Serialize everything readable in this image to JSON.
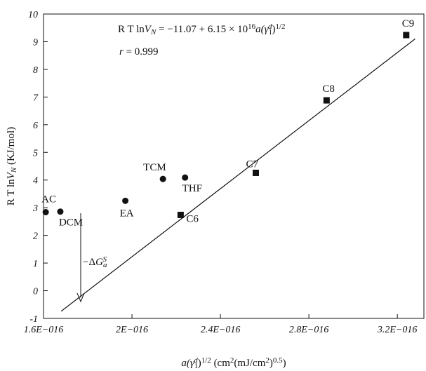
{
  "chart_data": {
    "type": "scatter",
    "x_label": [
      "a(γ",
      "1",
      "d",
      ")",
      "1/2",
      " (cm",
      "2",
      "(mJ/cm",
      "2",
      ")",
      "0.5",
      ")"
    ],
    "y_label": [
      "R T ln",
      "V",
      "N",
      " (KJ/mol)"
    ],
    "annotations": {
      "equation": [
        "R T ln",
        "V",
        "N",
        " = −11.07 + 6.15 × 10",
        "16",
        "a",
        "(γ",
        "1",
        "d",
        ")",
        "1/2"
      ],
      "r": [
        "r",
        " = 0.999"
      ],
      "delta_g": [
        "−Δ",
        "G",
        "a",
        "S"
      ]
    },
    "xlim": [
      1.6e-16,
      3.32e-16
    ],
    "xticks": [
      {
        "value": 1.6e-16,
        "label": "1.6E−016"
      },
      {
        "value": 2e-16,
        "label": "2E−016"
      },
      {
        "value": 2.4e-16,
        "label": "2.4E−016"
      },
      {
        "value": 2.8e-16,
        "label": "2.8E−016"
      },
      {
        "value": 3.2e-16,
        "label": "3.2E−016"
      }
    ],
    "ylim": [
      -1,
      10
    ],
    "yticks": [
      -1,
      0,
      1,
      2,
      3,
      4,
      5,
      6,
      7,
      8,
      9,
      10
    ],
    "series": [
      {
        "marker": "circle",
        "color": "#111111",
        "labels": [
          "AC",
          "DCM",
          "EA",
          "TCM",
          "THF"
        ],
        "x": [
          1.61e-16,
          1.676e-16,
          1.97e-16,
          2.14e-16,
          2.24e-16
        ],
        "values": [
          2.84,
          2.86,
          3.25,
          4.04,
          4.09
        ]
      },
      {
        "marker": "square",
        "color": "#111111",
        "labels": [
          "C6",
          "C7",
          "C8",
          "C9"
        ],
        "x": [
          2.22e-16,
          2.56e-16,
          2.88e-16,
          3.24e-16
        ],
        "values": [
          2.74,
          4.26,
          6.88,
          9.24
        ]
      }
    ],
    "fit_line": {
      "x": [
        1.68e-16,
        3.28e-16
      ],
      "values": [
        -0.74,
        9.1
      ]
    }
  }
}
